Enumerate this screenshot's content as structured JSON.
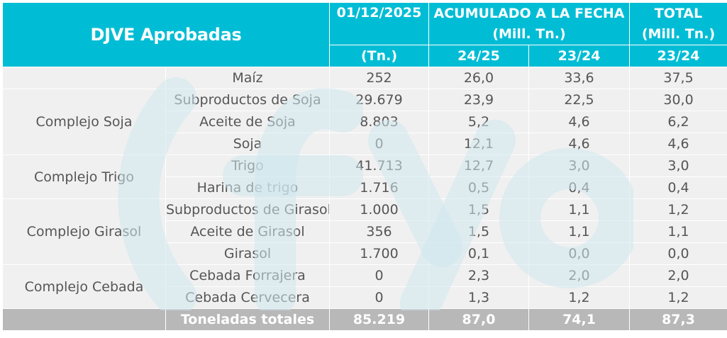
{
  "header": {
    "title": "DJVE Aprobadas",
    "date": "01/12/2025",
    "date_unit": "(Tn.)",
    "acumulado_line1": "ACUMULADO A LA FECHA",
    "acumulado_line2": "(Mill. Tn.)",
    "total_line1": "TOTAL",
    "total_line2": "(Mill. Tn.)",
    "col_2425": "24/25",
    "col_2324": "23/24",
    "col_total_2324": "23/24"
  },
  "groups": {
    "soja": "Complejo Soja",
    "trigo": "Complejo Trigo",
    "girasol": "Complejo Girasol",
    "cebada": "Complejo Cebada"
  },
  "rows": [
    {
      "product": "Maíz",
      "tn": "252",
      "acc_2425": "26,0",
      "acc_2324": "33,6",
      "total_2324": "37,5"
    },
    {
      "product": "Subproductos de Soja",
      "tn": "29.679",
      "acc_2425": "23,9",
      "acc_2324": "22,5",
      "total_2324": "30,0"
    },
    {
      "product": "Aceite de Soja",
      "tn": "8.803",
      "acc_2425": "5,2",
      "acc_2324": "4,6",
      "total_2324": "6,2"
    },
    {
      "product": "Soja",
      "tn": "0",
      "acc_2425": "12,1",
      "acc_2324": "4,6",
      "total_2324": "4,6"
    },
    {
      "product": "Trigo",
      "tn": "41.713",
      "acc_2425": "12,7",
      "acc_2324": "3,0",
      "total_2324": "3,0"
    },
    {
      "product": "Harina de trigo",
      "tn": "1.716",
      "acc_2425": "0,5",
      "acc_2324": "0,4",
      "total_2324": "0,4"
    },
    {
      "product": "Subproductos de Girasol",
      "tn": "1.000",
      "acc_2425": "1,5",
      "acc_2324": "1,1",
      "total_2324": "1,2"
    },
    {
      "product": "Aceite de Girasol",
      "tn": "356",
      "acc_2425": "1,5",
      "acc_2324": "1,1",
      "total_2324": "1,1"
    },
    {
      "product": "Girasol",
      "tn": "1.700",
      "acc_2425": "0,1",
      "acc_2324": "0,0",
      "total_2324": "0,0"
    },
    {
      "product": "Cebada Forrajera",
      "tn": "0",
      "acc_2425": "2,3",
      "acc_2324": "2,0",
      "total_2324": "2,0"
    },
    {
      "product": "Cebada Cervecera",
      "tn": "0",
      "acc_2425": "1,3",
      "acc_2324": "1,2",
      "total_2324": "1,2"
    }
  ],
  "totals": {
    "label": "Toneladas totales",
    "tn": "85.219",
    "acc_2425": "87,0",
    "acc_2324": "74,1",
    "total_2324": "87,3"
  },
  "colors": {
    "header": "#00bdd5",
    "cell": "#f0f0f0",
    "total": "#b8b8b8",
    "text": "#555555"
  },
  "watermark_icon": "watermark-logo-icon"
}
